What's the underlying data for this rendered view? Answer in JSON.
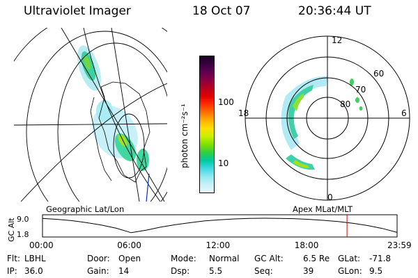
{
  "header": {
    "instrument": "Ultraviolet Imager",
    "date": "18 Oct 07",
    "time": "20:36:44 UT"
  },
  "colorbar": {
    "unit_label": "photon cm⁻²s⁻¹",
    "ticks": [
      "100",
      "10"
    ],
    "colors": [
      "#1a0020",
      "#3a0040",
      "#600050",
      "#8a0040",
      "#b80020",
      "#e00000",
      "#ff3000",
      "#ff7000",
      "#ffb000",
      "#ffe000",
      "#c8f000",
      "#80e000",
      "#30d040",
      "#00c8a0",
      "#40d8e0",
      "#90e8f0",
      "#c8f0f8",
      "#e8f8fc"
    ]
  },
  "left_map": {
    "caption": "Geographic Lat/Lon"
  },
  "right_map": {
    "caption": "Apex  MLat/MLT",
    "mlt_labels": [
      "12",
      "18",
      "6",
      "0"
    ],
    "lat_labels": [
      "60",
      "70",
      "80"
    ]
  },
  "chart_data": {
    "type": "line",
    "title": "",
    "ylabel": "GC Alt",
    "xlabel": "",
    "y_ticks": [
      "9.0",
      "1.8"
    ],
    "ylim": [
      1.8,
      9.0
    ],
    "x_tick_labels": [
      "00:00",
      "06:00",
      "12:00",
      "18:00",
      "23:59"
    ],
    "x_hours": [
      0,
      1,
      2,
      3,
      4,
      5,
      6,
      7,
      8,
      9,
      10,
      11,
      12,
      13,
      14,
      15,
      16,
      17,
      18,
      19,
      20,
      21,
      22,
      23,
      24
    ],
    "series": [
      {
        "values": [
          8.9,
          8.5,
          7.9,
          7.0,
          5.9,
          4.5,
          2.5,
          3.6,
          5.0,
          6.1,
          7.0,
          7.8,
          8.3,
          8.7,
          8.95,
          9.0,
          8.95,
          8.8,
          8.5,
          8.05,
          7.5,
          6.7,
          5.7,
          4.4,
          2.6
        ]
      }
    ],
    "marker_hour": 20.61,
    "marker_color": "#d00000"
  },
  "footer": {
    "row1": [
      {
        "label": "Flt:",
        "value": "LBHL"
      },
      {
        "label": "Door:",
        "value": "Open"
      },
      {
        "label": "Mode:",
        "value": "Normal"
      },
      {
        "label": "GC Alt:",
        "value": "6.5 Re"
      },
      {
        "label": "GLat:",
        "value": "-71.8"
      }
    ],
    "row2": [
      {
        "label": "IP:",
        "value": "36.0"
      },
      {
        "label": "Gain:",
        "value": "14"
      },
      {
        "label": "Dsp:",
        "value": "5.5"
      },
      {
        "label": "Seq:",
        "value": "39"
      },
      {
        "label": "GLon:",
        "value": "9.5"
      }
    ]
  }
}
